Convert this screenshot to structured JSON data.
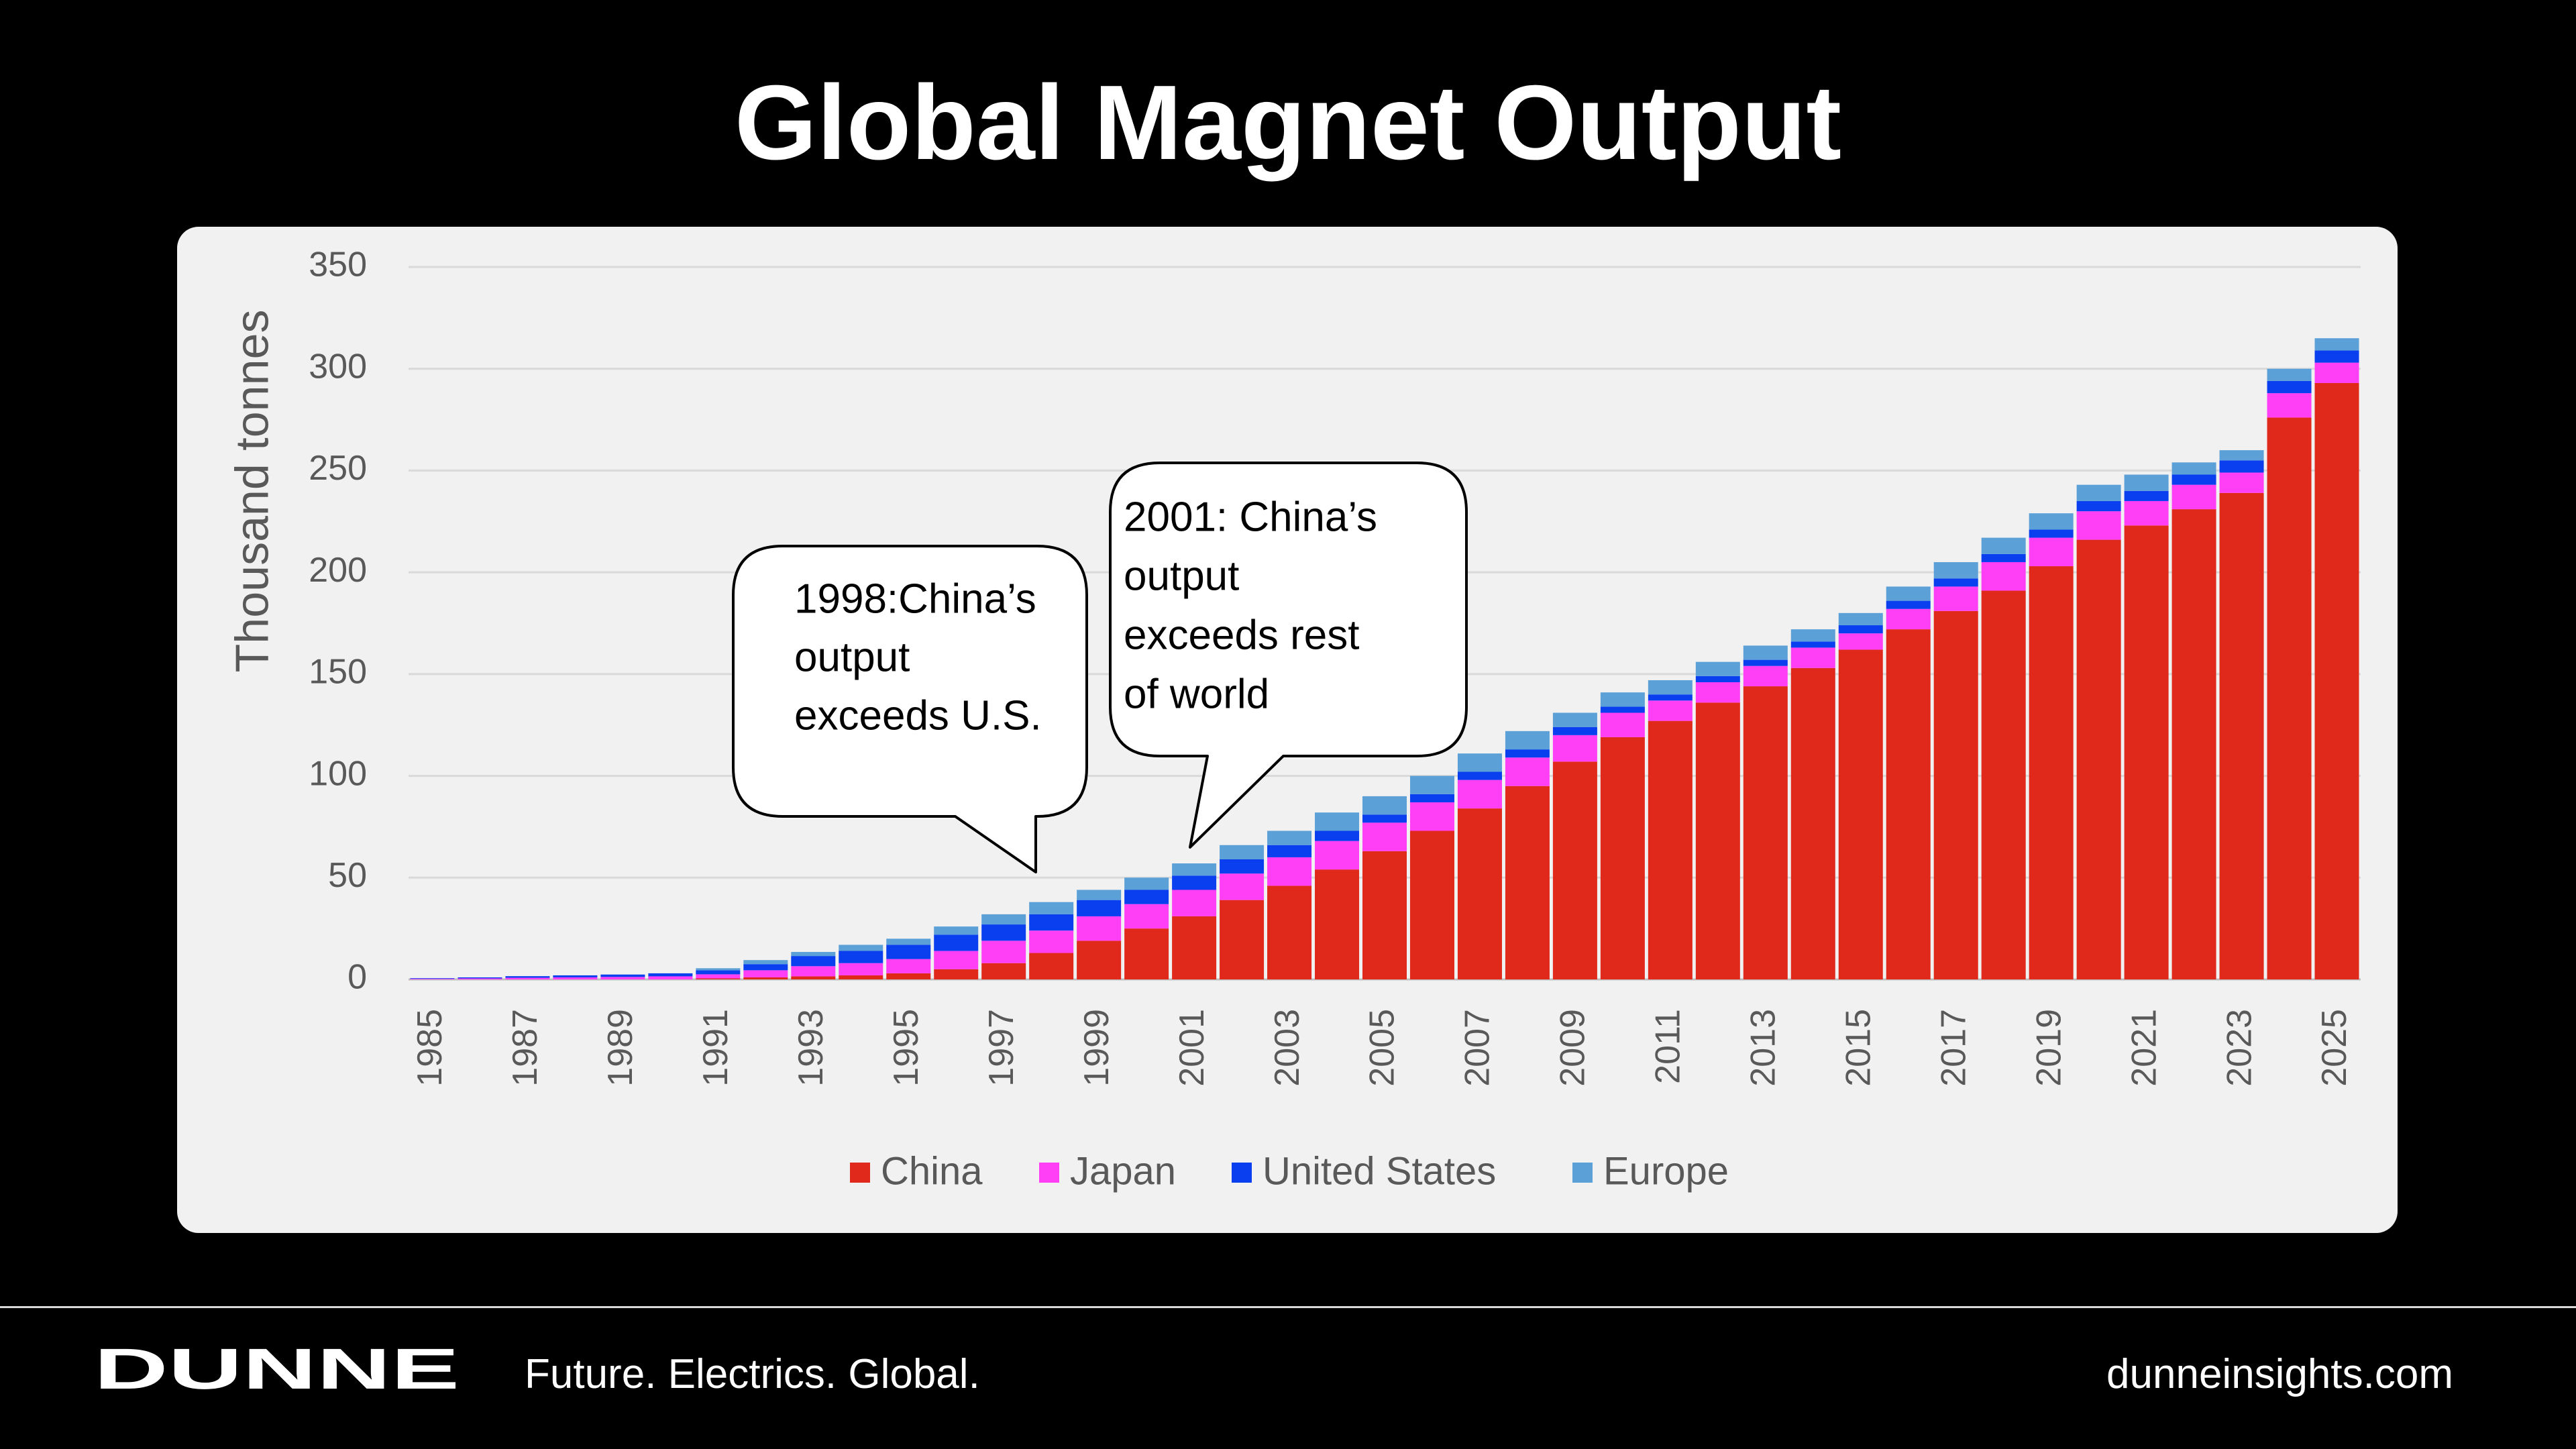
{
  "slide": {
    "title": "Global Magnet Output"
  },
  "chart_data": {
    "type": "bar",
    "stacked": true,
    "ylabel": "Thousand tonnes",
    "ylim": [
      0,
      350
    ],
    "yticks": [
      0,
      50,
      100,
      150,
      200,
      250,
      300,
      350
    ],
    "grid": true,
    "legend_position": "bottom",
    "x_tick_labels_rotated": true,
    "categories": [
      "1985",
      "1986",
      "1987",
      "1988",
      "1989",
      "1990",
      "1991",
      "1992",
      "1993",
      "1994",
      "1995",
      "1996",
      "1997",
      "1998",
      "1999",
      "2000",
      "2001",
      "2002",
      "2003",
      "2004",
      "2005",
      "2006",
      "2007",
      "2008",
      "2009",
      "2010",
      "2011",
      "2012",
      "2013",
      "2014",
      "2015",
      "2016",
      "2017",
      "2018",
      "2019",
      "2020",
      "2021",
      "2022",
      "2023",
      "2024",
      "2025"
    ],
    "x_tick_labels": [
      "1985",
      "1987",
      "1989",
      "1991",
      "1993",
      "1995",
      "1997",
      "1999",
      "2001",
      "2003",
      "2005",
      "2007",
      "2009",
      "2011",
      "2013",
      "2015",
      "2017",
      "2019",
      "2021",
      "2023",
      "2025"
    ],
    "series": [
      {
        "name": "China",
        "color": "#e0291a",
        "values": [
          0,
          0,
          0,
          0,
          0,
          0,
          0.5,
          1,
          1.5,
          2,
          3,
          5,
          8,
          13,
          19,
          25,
          31,
          39,
          46,
          54,
          63,
          73,
          84,
          95,
          107,
          119,
          127,
          136,
          144,
          153,
          162,
          172,
          181,
          191,
          203,
          216,
          223,
          231,
          239,
          276,
          293
        ]
      },
      {
        "name": "Japan",
        "color": "#ff3ff5",
        "values": [
          0.3,
          0.5,
          0.8,
          1,
          1.2,
          1.5,
          2,
          3.5,
          5,
          6,
          7,
          9,
          11,
          11,
          12,
          12,
          13,
          13,
          14,
          14,
          14,
          14,
          14,
          14,
          13,
          12,
          10,
          10,
          10,
          10,
          8,
          10,
          12,
          14,
          14,
          14,
          12,
          12,
          10,
          12,
          10
        ]
      },
      {
        "name": "United States",
        "color": "#0a3ff0",
        "values": [
          0.3,
          0.5,
          0.8,
          1,
          1.2,
          1.5,
          2,
          3,
          5,
          6,
          7,
          8,
          8,
          8,
          8,
          7,
          7,
          7,
          6,
          5,
          4,
          4,
          4,
          4,
          4,
          3,
          3,
          3,
          3,
          3,
          4,
          4,
          4,
          4,
          4,
          5,
          5,
          5,
          6,
          6,
          6
        ]
      },
      {
        "name": "Europe",
        "color": "#5ca0d8",
        "values": [
          0,
          0,
          0,
          0,
          0,
          0,
          1,
          2,
          2,
          3,
          3,
          4,
          5,
          6,
          5,
          6,
          6,
          7,
          7,
          9,
          9,
          9,
          9,
          9,
          7,
          7,
          7,
          7,
          7,
          6,
          6,
          7,
          8,
          8,
          8,
          8,
          8,
          6,
          5,
          6,
          6
        ]
      }
    ],
    "annotations": [
      {
        "label_lines": [
          "1998:China’s",
          "output",
          "exceeds U.S."
        ],
        "year": "1998"
      },
      {
        "label_lines": [
          "2001: China’s",
          "output",
          "exceeds rest",
          "of world"
        ],
        "year": "2001"
      }
    ]
  },
  "footer": {
    "logo": "DUNNE",
    "tagline": "Future. Electrics. Global.",
    "url": "dunneinsights.com"
  }
}
